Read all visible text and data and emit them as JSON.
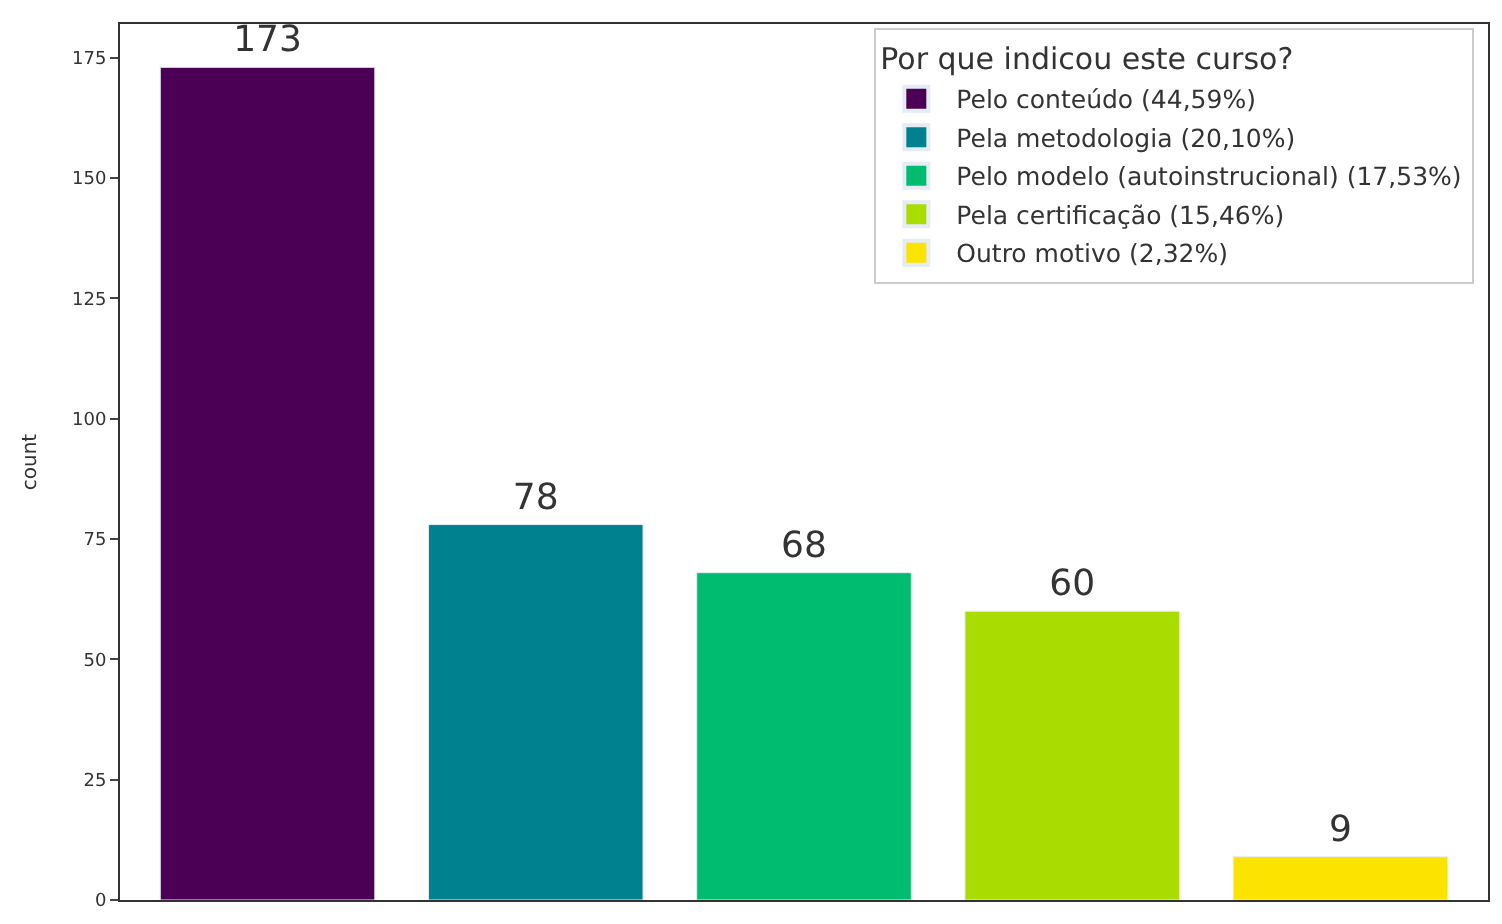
{
  "chart_data": {
    "type": "bar",
    "ylabel": "count",
    "legend_title": "Por que indicou este curso?",
    "categories": [
      null,
      null,
      null,
      null,
      null
    ],
    "series": [
      {
        "name": "Pelo conteúdo (44,59%)",
        "color": "#4b0055",
        "values": [
          173,
          null,
          null,
          null,
          null
        ]
      },
      {
        "name": "Pela metodologia (20,10%)",
        "color": "#00818f",
        "values": [
          null,
          78,
          null,
          null,
          null
        ]
      },
      {
        "name": "Pelo modelo (autoinstrucional) (17,53%)",
        "color": "#00bc70",
        "values": [
          null,
          null,
          68,
          null,
          null
        ]
      },
      {
        "name": "Pela certificação (15,46%)",
        "color": "#a9dc00",
        "values": [
          null,
          null,
          null,
          60,
          null
        ]
      },
      {
        "name": "Outro motivo (2,32%)",
        "color": "#fde300",
        "values": [
          null,
          null,
          null,
          null,
          9
        ]
      }
    ],
    "ylim": [
      0,
      182
    ],
    "yticks": [
      0,
      25,
      50,
      75,
      100,
      125,
      150,
      175
    ],
    "data_labels": true,
    "legend": "top right",
    "tick_labels": "y"
  }
}
